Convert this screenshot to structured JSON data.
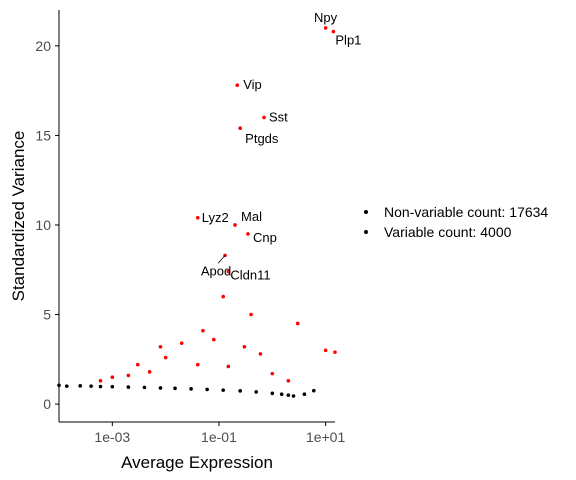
{
  "chart_data": {
    "type": "scatter",
    "title": "",
    "xlabel": "Average Expression",
    "ylabel": "Standardized Variance",
    "x_scale": "log10",
    "xlim": [
      0.0001,
      15
    ],
    "ylim": [
      -1,
      22
    ],
    "x_ticks": [
      0.001,
      0.1,
      10
    ],
    "x_tick_labels": [
      "1e-03",
      "1e-01",
      "1e+01"
    ],
    "y_ticks": [
      0,
      5,
      10,
      15,
      20
    ],
    "y_tick_labels": [
      "0",
      "5",
      "10",
      "15",
      "20"
    ],
    "grid": false,
    "legend_position": "right",
    "series": [
      {
        "name": "Non-variable count: 17634",
        "color": "#000000",
        "points": [
          [
            0.0001,
            1.05
          ],
          [
            0.00014,
            1.0
          ],
          [
            0.00025,
            1.02
          ],
          [
            0.0004,
            1.0
          ],
          [
            0.0006,
            0.98
          ],
          [
            0.001,
            0.97
          ],
          [
            0.002,
            0.95
          ],
          [
            0.004,
            0.93
          ],
          [
            0.008,
            0.9
          ],
          [
            0.015,
            0.88
          ],
          [
            0.03,
            0.85
          ],
          [
            0.06,
            0.82
          ],
          [
            0.12,
            0.78
          ],
          [
            0.25,
            0.74
          ],
          [
            0.5,
            0.68
          ],
          [
            1.0,
            0.6
          ],
          [
            1.5,
            0.55
          ],
          [
            2.0,
            0.5
          ],
          [
            2.5,
            0.45
          ],
          [
            4.0,
            0.55
          ],
          [
            6.0,
            0.75
          ]
        ]
      },
      {
        "name": "Variable count: 4000",
        "color": "#ff0000",
        "points": [
          [
            10.0,
            21.0
          ],
          [
            14.0,
            20.8
          ],
          [
            0.22,
            17.8
          ],
          [
            0.7,
            16.0
          ],
          [
            0.25,
            15.4
          ],
          [
            0.04,
            10.4
          ],
          [
            0.2,
            10.0
          ],
          [
            0.35,
            9.5
          ],
          [
            0.13,
            8.3
          ],
          [
            0.15,
            7.4
          ],
          [
            0.008,
            3.2
          ],
          [
            0.02,
            3.4
          ],
          [
            0.05,
            4.1
          ],
          [
            0.08,
            3.6
          ],
          [
            0.3,
            3.2
          ],
          [
            0.6,
            2.8
          ],
          [
            3.0,
            4.5
          ],
          [
            0.01,
            2.6
          ],
          [
            0.003,
            2.2
          ],
          [
            0.002,
            1.6
          ],
          [
            0.001,
            1.5
          ],
          [
            0.0006,
            1.3
          ],
          [
            0.005,
            1.8
          ],
          [
            0.04,
            2.2
          ],
          [
            0.15,
            2.1
          ],
          [
            1.0,
            1.7
          ],
          [
            2.0,
            1.3
          ],
          [
            10.0,
            3.0
          ],
          [
            15.0,
            2.9
          ],
          [
            0.4,
            5.0
          ],
          [
            0.12,
            6.0
          ]
        ]
      }
    ],
    "annotations": [
      {
        "text": "Npy",
        "x": 10.0,
        "y": 21.0
      },
      {
        "text": "Plp1",
        "x": 14.0,
        "y": 20.8
      },
      {
        "text": "Vip",
        "x": 0.22,
        "y": 17.8
      },
      {
        "text": "Sst",
        "x": 0.7,
        "y": 16.0
      },
      {
        "text": "Ptgds",
        "x": 0.25,
        "y": 15.4
      },
      {
        "text": "Lyz2",
        "x": 0.04,
        "y": 10.4
      },
      {
        "text": "Mal",
        "x": 0.2,
        "y": 10.0
      },
      {
        "text": "Cnp",
        "x": 0.35,
        "y": 9.5
      },
      {
        "text": "Cldn11",
        "x": 0.15,
        "y": 7.4
      },
      {
        "text": "Apod",
        "x": 0.13,
        "y": 8.3
      }
    ]
  }
}
